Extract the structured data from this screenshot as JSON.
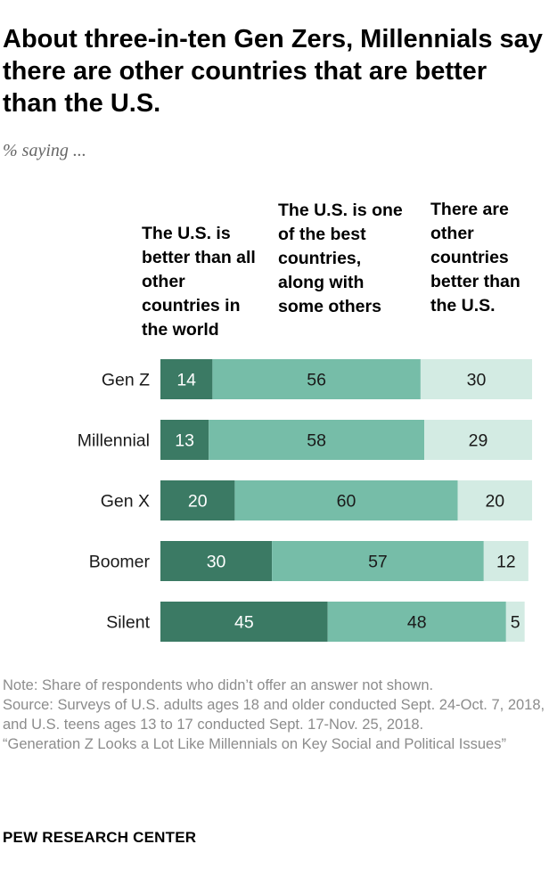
{
  "title": "About three-in-ten Gen Zers, Millennials say there are other countries that are better than the U.S.",
  "subtitle": "% saying ...",
  "columns": [
    "The U.S. is better than all other countries in the world",
    "The U.S. is one of the best countries, along with some others",
    "There are other countries better than the U.S."
  ],
  "notes": {
    "note": "Note: Share of respondents who didn’t offer an answer not shown.",
    "source": "Source: Surveys of U.S. adults ages 18 and older conducted Sept. 24-Oct. 7, 2018, and U.S. teens ages 13 to 17 conducted Sept. 17-Nov. 25, 2018.",
    "report": "“Generation Z Looks a Lot Like Millennials on Key Social and Political Issues”"
  },
  "brand": "PEW RESEARCH CENTER",
  "chart_data": {
    "type": "bar",
    "orientation": "horizontal",
    "stacked": true,
    "categories": [
      "Gen Z",
      "Millennial",
      "Gen X",
      "Boomer",
      "Silent"
    ],
    "series": [
      {
        "name": "The U.S. is better than all other countries in the world",
        "values": [
          14,
          13,
          20,
          30,
          45
        ],
        "color": "#3b7a64"
      },
      {
        "name": "The U.S. is one of the best countries, along with some others",
        "values": [
          56,
          58,
          60,
          57,
          48
        ],
        "color": "#76bda8"
      },
      {
        "name": "There are other countries better than the U.S.",
        "values": [
          30,
          29,
          20,
          12,
          5
        ],
        "color": "#d3ebe3"
      }
    ],
    "xlim": [
      0,
      100
    ],
    "grid": false,
    "legend": "column headers above bars"
  }
}
